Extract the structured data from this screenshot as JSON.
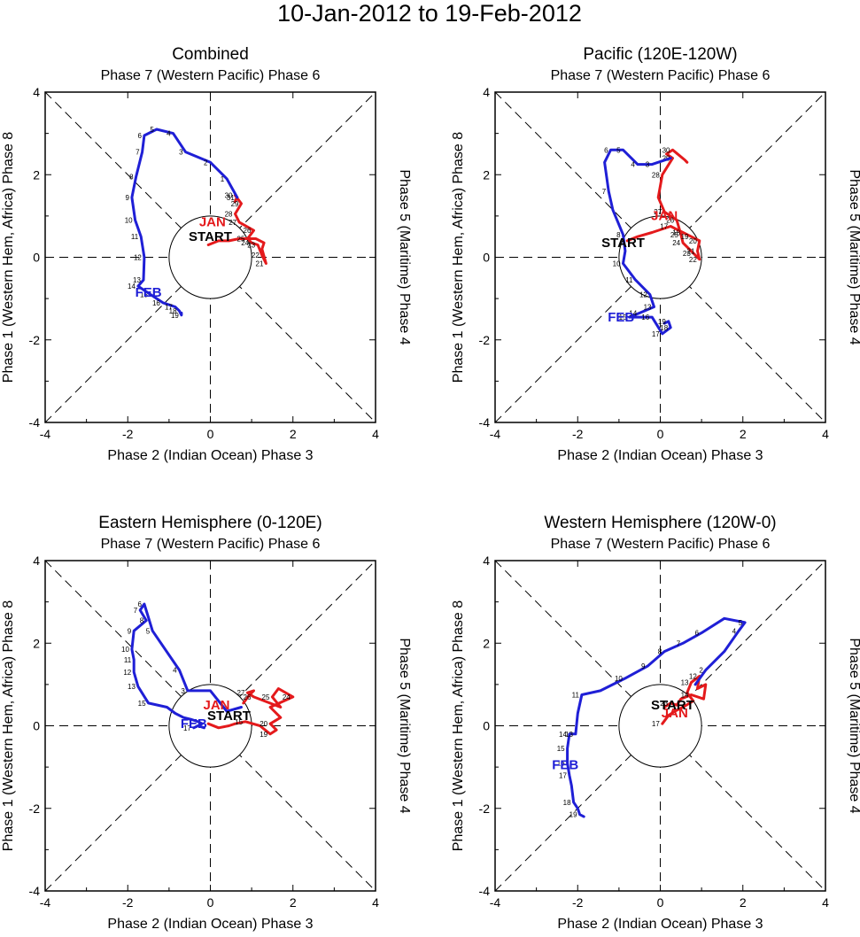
{
  "figure": {
    "title": "10-Jan-2012 to 19-Feb-2012",
    "start_label": "START"
  },
  "colors": {
    "jan": "#e41a1c",
    "feb": "#1f1fd6",
    "axis": "#000000",
    "dashed": "#000000"
  },
  "chart_data": [
    {
      "type": "line",
      "title": "Combined",
      "top_label": "Phase 7 (Western Pacific) Phase 6",
      "bottom_label": "Phase 2 (Indian Ocean) Phase 3",
      "left_label": "Phase 1 (Western Hem, Africa) Phase 8",
      "right_label": "Phase 5 (Maritime) Phase 4",
      "xlim": [
        -4,
        4
      ],
      "ylim": [
        -4,
        4
      ],
      "xticks": [
        "-4",
        "-2",
        "0",
        "2",
        "4"
      ],
      "yticks": [
        "-4",
        "-2",
        "0",
        "2",
        "4"
      ],
      "start": [
        0,
        0.5
      ],
      "series": [
        {
          "name": "JAN",
          "label_pos": [
            0.05,
            0.75
          ],
          "x": [
            -0.05,
            0.2,
            0.45,
            0.7,
            0.95,
            1.1,
            1.3,
            1.25,
            1.35,
            1.25,
            1.15,
            1.0,
            0.9,
            1.05,
            0.7,
            0.6,
            0.75,
            0.6,
            0.65,
            0.62,
            0.6,
            0.65
          ],
          "y": [
            0.3,
            0.4,
            0.4,
            0.45,
            0.45,
            0.45,
            0.35,
            0.2,
            -0.15,
            0.05,
            0.3,
            0.35,
            0.45,
            0.65,
            0.85,
            1.05,
            1.3,
            1.5,
            1.45,
            1.4,
            1.35,
            1.45
          ],
          "labels": [
            "",
            "",
            "",
            "",
            "",
            "",
            "",
            "",
            "21",
            "22",
            "23",
            "24",
            "25",
            "26",
            "27",
            "28",
            "29",
            "30",
            "31",
            "",
            "",
            ""
          ]
        },
        {
          "name": "FEB",
          "label_pos": [
            -1.5,
            -0.95
          ],
          "x": [
            0.65,
            0.4,
            0.0,
            -0.6,
            -0.9,
            -1.3,
            -1.6,
            -1.65,
            -1.8,
            -1.9,
            -1.82,
            -1.68,
            -1.6,
            -1.62,
            -1.75,
            -1.45,
            -1.15,
            -0.85,
            -0.75,
            -0.7,
            -0.7
          ],
          "y": [
            1.45,
            1.9,
            2.3,
            2.55,
            3.0,
            3.1,
            2.95,
            2.55,
            1.95,
            1.45,
            0.9,
            0.5,
            0.0,
            -0.55,
            -0.7,
            -0.9,
            -1.1,
            -1.2,
            -1.3,
            -1.4,
            -1.35
          ],
          "labels": [
            "",
            "1",
            "2",
            "3",
            "4",
            "5",
            "6",
            "7",
            "8",
            "9",
            "10",
            "11",
            "12",
            "13",
            "14",
            "15",
            "16",
            "17",
            "18",
            "19",
            ""
          ]
        }
      ]
    },
    {
      "type": "line",
      "title": "Pacific (120E-120W)",
      "top_label": "Phase 7 (Western Pacific) Phase 6",
      "bottom_label": "Phase 2 (Indian Ocean) Phase 3",
      "left_label": "Phase 1 (Western Hem, Africa) Phase 8",
      "right_label": "Phase 5 (Maritime) Phase 4",
      "xlim": [
        -4,
        4
      ],
      "ylim": [
        -4,
        4
      ],
      "xticks": [
        "-4",
        "-2",
        "0",
        "2",
        "4"
      ],
      "yticks": [
        "-4",
        "-2",
        "0",
        "2",
        "4"
      ],
      "start": [
        -0.9,
        0.35
      ],
      "series": [
        {
          "name": "JAN",
          "label_pos": [
            0.1,
            0.9
          ],
          "x": [
            -0.8,
            -0.55,
            -0.2,
            0.25,
            0.55,
            0.75,
            0.95,
            0.9,
            0.95,
            0.8,
            0.55,
            0.5,
            0.4,
            0.1,
            -0.05,
            0.05,
            0.3,
            0.15,
            0.3,
            0.6,
            0.65
          ],
          "y": [
            0.4,
            0.5,
            0.6,
            0.75,
            0.6,
            0.5,
            0.4,
            0.15,
            -0.05,
            0.1,
            0.35,
            0.55,
            0.9,
            1.1,
            1.45,
            2.0,
            2.4,
            2.5,
            2.6,
            2.35,
            2.3
          ],
          "labels": [
            "",
            "",
            "",
            "17",
            "18",
            "19",
            "20",
            "21",
            "22",
            "23",
            "24",
            "25",
            "26",
            "27",
            "",
            "28",
            "29",
            "",
            "30",
            "",
            ""
          ]
        },
        {
          "name": "FEB",
          "label_pos": [
            -0.95,
            -1.55
          ],
          "x": [
            0.25,
            -0.2,
            -0.55,
            -0.9,
            -1.2,
            -1.35,
            -1.25,
            -1.15,
            -0.9,
            -0.85,
            -0.9,
            -0.6,
            -0.25,
            -0.15,
            -0.5,
            -0.75,
            -0.2,
            0.05,
            0.25,
            0.2,
            0.1
          ],
          "y": [
            2.4,
            2.25,
            2.25,
            2.6,
            2.6,
            2.3,
            1.6,
            1.15,
            0.55,
            0.15,
            -0.15,
            -0.55,
            -0.9,
            -1.2,
            -1.35,
            -1.45,
            -1.45,
            -1.85,
            -1.7,
            -1.55,
            -1.6
          ],
          "labels": [
            "",
            "3",
            "4",
            "5",
            "6",
            "",
            "7",
            "",
            "8",
            "",
            "10",
            "11",
            "12",
            "13",
            "14",
            "15",
            "16",
            "17",
            "18",
            "19",
            ""
          ]
        }
      ]
    },
    {
      "type": "line",
      "title": "Eastern Hemisphere (0-120E)",
      "top_label": "Phase 7 (Western Pacific) Phase 6",
      "bottom_label": "Phase 2 (Indian Ocean) Phase 3",
      "left_label": "Phase 1 (Western Hem, Africa) Phase 8",
      "right_label": "Phase 5 (Maritime) Phase 4",
      "xlim": [
        -4,
        4
      ],
      "ylim": [
        -4,
        4
      ],
      "xticks": [
        "-4",
        "-2",
        "0",
        "2",
        "4"
      ],
      "yticks": [
        "-4",
        "-2",
        "0",
        "2",
        "4"
      ],
      "start": [
        0.45,
        0.25
      ],
      "series": [
        {
          "name": "JAN",
          "label_pos": [
            0.15,
            0.4
          ],
          "x": [
            -0.05,
            0.2,
            0.45,
            0.6,
            0.85,
            1.2,
            1.45,
            1.6,
            1.45,
            1.7,
            1.45,
            2.0,
            1.65,
            1.5,
            1.7,
            1.05,
            0.9,
            1.05,
            0.95,
            0.8
          ],
          "y": [
            0.05,
            -0.05,
            0.0,
            0.05,
            0.1,
            0.0,
            -0.2,
            -0.1,
            0.05,
            0.2,
            0.45,
            0.7,
            0.9,
            0.7,
            0.45,
            0.7,
            0.8,
            0.85,
            0.75,
            0.55
          ],
          "labels": [
            "",
            "",
            "",
            "",
            "15",
            "",
            "19",
            "",
            "20",
            "",
            "",
            "24",
            "",
            "25",
            "",
            "26",
            "27",
            "",
            "",
            ""
          ]
        },
        {
          "name": "FEB",
          "label_pos": [
            -0.4,
            -0.05
          ],
          "x": [
            0.75,
            0.4,
            0.0,
            -0.55,
            -0.75,
            -1.4,
            -1.6,
            -1.7,
            -1.55,
            -1.85,
            -1.9,
            -1.85,
            -1.85,
            -1.75,
            -1.5,
            -1.05,
            -0.85,
            -0.65,
            -0.45,
            -0.3,
            -0.2,
            -0.4,
            -0.3,
            -0.15
          ],
          "y": [
            0.45,
            0.35,
            0.85,
            0.85,
            1.35,
            2.3,
            2.95,
            2.8,
            2.55,
            2.3,
            1.85,
            1.6,
            1.3,
            0.95,
            0.55,
            0.45,
            0.3,
            0.2,
            0.15,
            0.1,
            0.05,
            -0.05,
            0.0,
            -0.05
          ],
          "labels": [
            "",
            "",
            "",
            "3",
            "4",
            "5",
            "6",
            "7",
            "8",
            "9",
            "10",
            "11",
            "12",
            "13",
            "15",
            "",
            "",
            "",
            "",
            "",
            "",
            "17",
            "",
            ""
          ]
        }
      ]
    },
    {
      "type": "line",
      "title": "Western Hemisphere (120W-0)",
      "top_label": "Phase 7 (Western Pacific) Phase 6",
      "bottom_label": "Phase 2 (Indian Ocean) Phase 3",
      "left_label": "Phase 1 (Western Hem, Africa) Phase 8",
      "right_label": "Phase 5 (Maritime) Phase 4",
      "xlim": [
        -4,
        4
      ],
      "ylim": [
        -4,
        4
      ],
      "xticks": [
        "-4",
        "-2",
        "0",
        "2",
        "4"
      ],
      "yticks": [
        "-4",
        "-2",
        "0",
        "2",
        "4"
      ],
      "start": [
        0.3,
        0.5
      ],
      "series": [
        {
          "name": "JAN",
          "label_pos": [
            0.35,
            0.2
          ],
          "x": [
            0.05,
            0.2,
            0.35,
            0.55,
            0.8,
            0.65,
            0.75,
            0.95,
            0.9,
            1.1,
            1.05,
            0.75,
            0.5,
            0.4,
            0.25,
            0.1
          ],
          "y": [
            0.05,
            0.25,
            0.35,
            0.45,
            0.6,
            0.8,
            1.05,
            1.2,
            0.9,
            1.0,
            0.65,
            0.75,
            0.65,
            0.5,
            0.55,
            0.45
          ],
          "labels": [
            "17",
            "",
            "",
            "",
            "",
            "",
            "13",
            "12",
            "",
            "",
            "",
            "14",
            "",
            "",
            "23",
            ""
          ]
        },
        {
          "name": "FEB",
          "label_pos": [
            -2.3,
            -1.05
          ],
          "x": [
            0.85,
            1.1,
            1.55,
            1.9,
            2.05,
            1.55,
            1.0,
            0.55,
            0.1,
            -0.3,
            -0.85,
            -1.45,
            -1.9,
            -2.0,
            -2.05,
            -2.2,
            -2.25,
            -2.25,
            -2.2,
            -2.15,
            -2.1,
            -2.0,
            -1.95,
            -1.85
          ],
          "y": [
            1.0,
            1.35,
            1.8,
            2.3,
            2.5,
            2.6,
            2.25,
            2.0,
            1.8,
            1.45,
            1.15,
            0.85,
            0.75,
            0.3,
            -0.2,
            -0.2,
            -0.55,
            -0.9,
            -1.2,
            -1.45,
            -1.85,
            -2.0,
            -2.15,
            -2.2
          ],
          "labels": [
            "",
            "2",
            "",
            "4",
            "5",
            "",
            "6",
            "7",
            "8",
            "9",
            "10",
            "",
            "11",
            "",
            "13",
            "14",
            "15",
            "16",
            "17",
            "",
            "18",
            "",
            "19",
            ""
          ]
        }
      ]
    }
  ]
}
